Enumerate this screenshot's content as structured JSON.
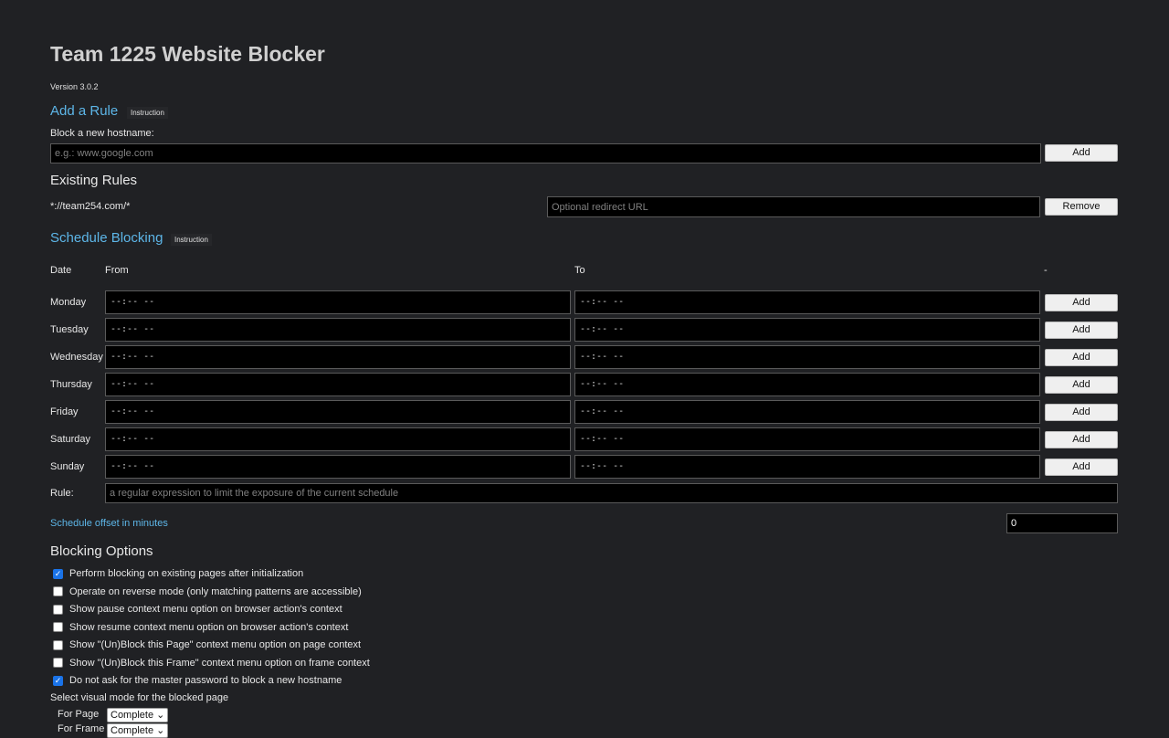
{
  "title": "Team 1225 Website Blocker",
  "version": "Version 3.0.2",
  "add_rule": {
    "heading": "Add a Rule",
    "instruction": "Instruction",
    "label": "Block a new hostname:",
    "placeholder": "e.g.: www.google.com",
    "add": "Add"
  },
  "existing": {
    "heading": "Existing Rules",
    "rules": [
      {
        "pattern": "*://team254.com/*",
        "redirect_placeholder": "Optional redirect URL",
        "remove": "Remove"
      }
    ]
  },
  "schedule": {
    "heading": "Schedule Blocking",
    "instruction": "Instruction",
    "col_date": "Date",
    "col_from": "From",
    "col_to": "To",
    "col_action": "-",
    "days": [
      {
        "day": "Monday",
        "from": "--:-- --",
        "to": "--:-- --",
        "add": "Add"
      },
      {
        "day": "Tuesday",
        "from": "--:-- --",
        "to": "--:-- --",
        "add": "Add"
      },
      {
        "day": "Wednesday",
        "from": "--:-- --",
        "to": "--:-- --",
        "add": "Add"
      },
      {
        "day": "Thursday",
        "from": "--:-- --",
        "to": "--:-- --",
        "add": "Add"
      },
      {
        "day": "Friday",
        "from": "--:-- --",
        "to": "--:-- --",
        "add": "Add"
      },
      {
        "day": "Saturday",
        "from": "--:-- --",
        "to": "--:-- --",
        "add": "Add"
      },
      {
        "day": "Sunday",
        "from": "--:-- --",
        "to": "--:-- --",
        "add": "Add"
      }
    ],
    "rule_label": "Rule:",
    "rule_placeholder": "a regular expression to limit the exposure of the current schedule",
    "offset_label": "Schedule offset in minutes",
    "offset_value": "0"
  },
  "options": {
    "heading": "Blocking Options",
    "items": [
      {
        "label": "Perform blocking on existing pages after initialization",
        "checked": true
      },
      {
        "label": "Operate on reverse mode (only matching patterns are accessible)",
        "checked": false
      },
      {
        "label": "Show pause context menu option on browser action's context",
        "checked": false
      },
      {
        "label": "Show resume context menu option on browser action's context",
        "checked": false
      },
      {
        "label": "Show \"(Un)Block this Page\" context menu option on page context",
        "checked": false
      },
      {
        "label": "Show \"(Un)Block this Frame\" context menu option on frame context",
        "checked": false
      },
      {
        "label": "Do not ask for the master password to block a new hostname",
        "checked": true
      }
    ],
    "visual_label": "Select visual mode for the blocked page",
    "for_page": "For Page",
    "for_page_value": "Complete",
    "for_frame": "For Frame",
    "for_frame_value": "Complete"
  },
  "colors": {
    "background": "#202124",
    "accent": "#5db6e8",
    "checkbox": "#1a73e8"
  }
}
